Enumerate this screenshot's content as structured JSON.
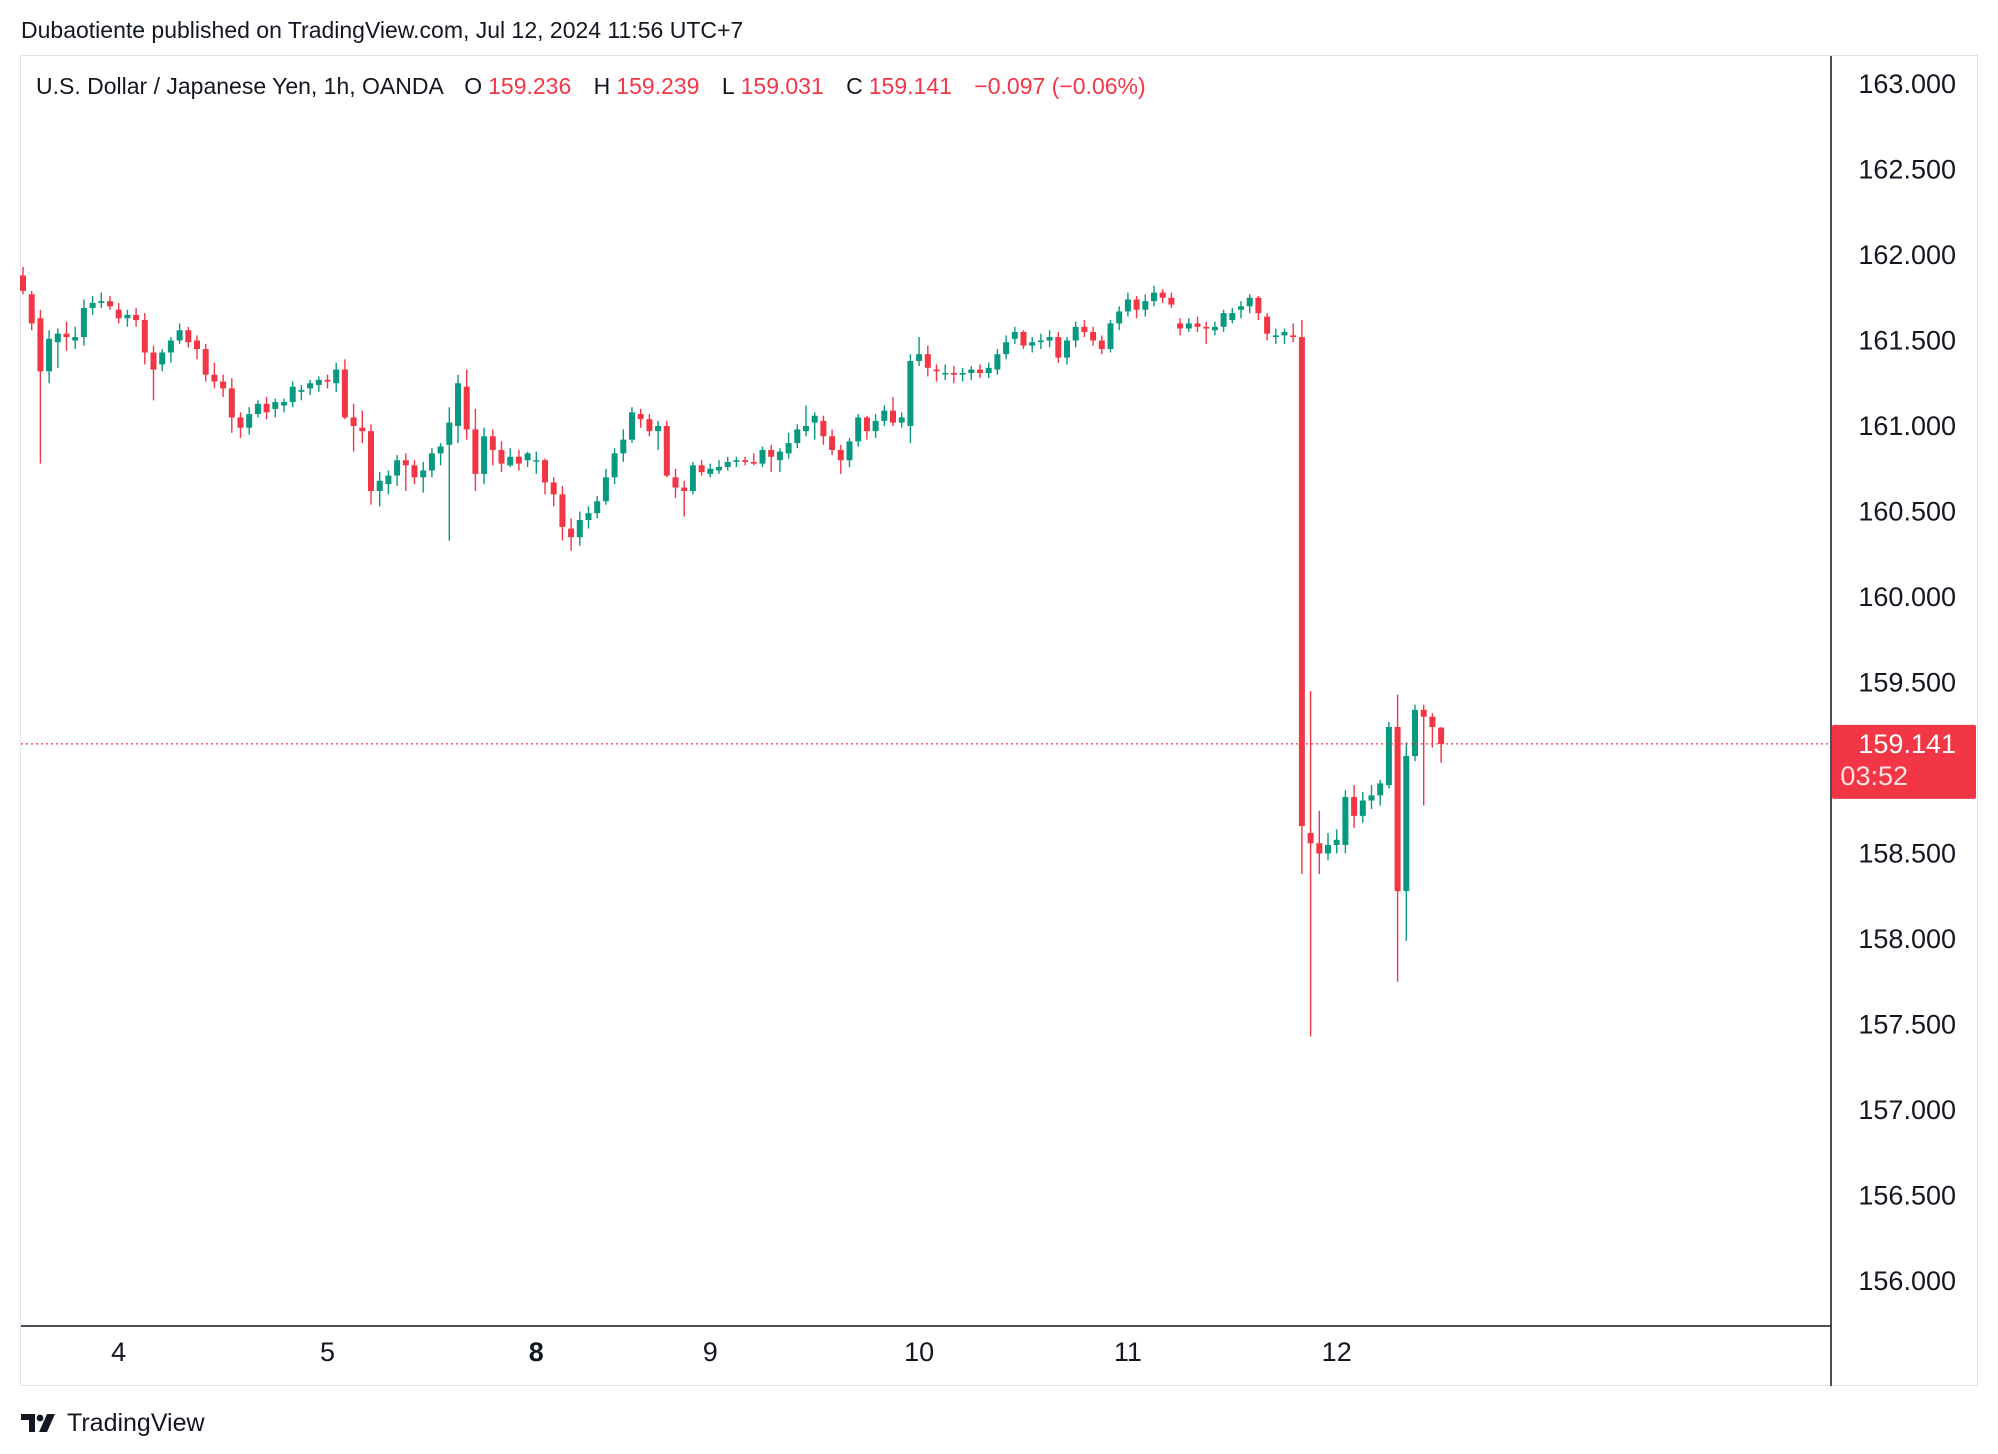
{
  "publisher_line": "Dubaotiente published on TradingView.com, Jul 12, 2024 11:56 UTC+7",
  "legend": {
    "symbol": "U.S. Dollar / Japanese Yen, 1h, OANDA",
    "open_label": "O",
    "open": "159.236",
    "high_label": "H",
    "high": "159.239",
    "low_label": "L",
    "low": "159.031",
    "close_label": "C",
    "close": "159.141",
    "change": "−0.097 (−0.06%)"
  },
  "price_tag": {
    "price": "159.141",
    "countdown": "03:52"
  },
  "brand": "TradingView",
  "colors": {
    "up": "#089981",
    "down": "#f23645",
    "text": "#131722",
    "border": "#e0e3eb",
    "axis": "#131722"
  },
  "chart_data": {
    "type": "candlestick",
    "symbol": "USDJPY",
    "interval": "1h",
    "ylim": [
      155.8,
      163.3
    ],
    "y_ticks": [
      "163.000",
      "162.500",
      "162.000",
      "161.500",
      "161.000",
      "160.500",
      "160.000",
      "159.500",
      "159.000",
      "158.500",
      "158.000",
      "157.500",
      "157.000",
      "156.500",
      "156.000"
    ],
    "x_ticks": [
      {
        "label": "4",
        "bar": 11,
        "bold": false
      },
      {
        "label": "5",
        "bar": 35,
        "bold": false
      },
      {
        "label": "8",
        "bar": 59,
        "bold": true
      },
      {
        "label": "9",
        "bar": 79,
        "bold": false
      },
      {
        "label": "10",
        "bar": 103,
        "bold": false
      },
      {
        "label": "11",
        "bar": 127,
        "bold": false
      },
      {
        "label": "12",
        "bar": 151,
        "bold": false
      }
    ],
    "last_price": 159.141,
    "candles": [
      [
        161.88,
        161.93,
        161.77,
        161.79
      ],
      [
        161.77,
        161.79,
        161.56,
        161.6
      ],
      [
        161.63,
        161.68,
        160.78,
        161.32
      ],
      [
        161.32,
        161.56,
        161.25,
        161.51
      ],
      [
        161.49,
        161.57,
        161.34,
        161.54
      ],
      [
        161.54,
        161.61,
        161.44,
        161.52
      ],
      [
        161.5,
        161.58,
        161.45,
        161.52
      ],
      [
        161.52,
        161.74,
        161.47,
        161.69
      ],
      [
        161.69,
        161.76,
        161.65,
        161.72
      ],
      [
        161.72,
        161.78,
        161.69,
        161.73
      ],
      [
        161.73,
        161.76,
        161.68,
        161.7
      ],
      [
        161.68,
        161.72,
        161.6,
        161.63
      ],
      [
        161.63,
        161.68,
        161.58,
        161.65
      ],
      [
        161.65,
        161.69,
        161.58,
        161.62
      ],
      [
        161.62,
        161.66,
        161.36,
        161.43
      ],
      [
        161.43,
        161.47,
        161.15,
        161.33
      ],
      [
        161.36,
        161.45,
        161.32,
        161.43
      ],
      [
        161.43,
        161.52,
        161.37,
        161.5
      ],
      [
        161.5,
        161.6,
        161.48,
        161.56
      ],
      [
        161.56,
        161.58,
        161.46,
        161.49
      ],
      [
        161.5,
        161.53,
        161.39,
        161.45
      ],
      [
        161.45,
        161.48,
        161.26,
        161.3
      ],
      [
        161.3,
        161.37,
        161.22,
        161.26
      ],
      [
        161.26,
        161.3,
        161.17,
        161.22
      ],
      [
        161.22,
        161.28,
        160.96,
        161.05
      ],
      [
        161.05,
        161.08,
        160.93,
        160.99
      ],
      [
        160.99,
        161.11,
        160.95,
        161.07
      ],
      [
        161.07,
        161.15,
        161.05,
        161.13
      ],
      [
        161.13,
        161.17,
        161.04,
        161.08
      ],
      [
        161.1,
        161.16,
        161.05,
        161.14
      ],
      [
        161.12,
        161.16,
        161.08,
        161.14
      ],
      [
        161.14,
        161.26,
        161.11,
        161.23
      ],
      [
        161.2,
        161.24,
        161.15,
        161.21
      ],
      [
        161.22,
        161.27,
        161.18,
        161.25
      ],
      [
        161.24,
        161.29,
        161.2,
        161.27
      ],
      [
        161.27,
        161.3,
        161.22,
        161.26
      ],
      [
        161.25,
        161.37,
        161.2,
        161.33
      ],
      [
        161.33,
        161.39,
        161.04,
        161.05
      ],
      [
        161.05,
        161.13,
        160.85,
        161.0
      ],
      [
        160.99,
        161.09,
        160.9,
        160.97
      ],
      [
        160.97,
        161.01,
        160.54,
        160.62
      ],
      [
        160.62,
        160.73,
        160.53,
        160.68
      ],
      [
        160.66,
        160.74,
        160.6,
        160.71
      ],
      [
        160.71,
        160.83,
        160.65,
        160.8
      ],
      [
        160.8,
        160.84,
        160.62,
        160.77
      ],
      [
        160.77,
        160.8,
        160.66,
        160.7
      ],
      [
        160.7,
        160.79,
        160.61,
        160.74
      ],
      [
        160.74,
        160.87,
        160.7,
        160.84
      ],
      [
        160.84,
        160.9,
        160.77,
        160.88
      ],
      [
        160.89,
        161.11,
        160.33,
        161.02
      ],
      [
        161.0,
        161.3,
        160.9,
        161.25
      ],
      [
        161.23,
        161.33,
        160.92,
        160.98
      ],
      [
        160.98,
        161.1,
        160.62,
        160.72
      ],
      [
        160.72,
        160.99,
        160.66,
        160.94
      ],
      [
        160.94,
        160.98,
        160.77,
        160.86
      ],
      [
        160.86,
        160.91,
        160.73,
        160.78
      ],
      [
        160.77,
        160.87,
        160.76,
        160.82
      ],
      [
        160.82,
        160.86,
        160.74,
        160.78
      ],
      [
        160.8,
        160.85,
        160.76,
        160.84
      ],
      [
        160.8,
        160.85,
        160.72,
        160.8
      ],
      [
        160.8,
        160.81,
        160.6,
        160.67
      ],
      [
        160.67,
        160.7,
        160.53,
        160.6
      ],
      [
        160.6,
        160.65,
        160.33,
        160.41
      ],
      [
        160.4,
        160.46,
        160.27,
        160.35
      ],
      [
        160.35,
        160.5,
        160.3,
        160.45
      ],
      [
        160.45,
        160.53,
        160.4,
        160.49
      ],
      [
        160.49,
        160.59,
        160.46,
        160.56
      ],
      [
        160.56,
        160.75,
        160.54,
        160.7
      ],
      [
        160.7,
        160.87,
        160.66,
        160.84
      ],
      [
        160.84,
        160.98,
        160.79,
        160.92
      ],
      [
        160.92,
        161.11,
        160.9,
        161.08
      ],
      [
        161.07,
        161.1,
        160.99,
        161.04
      ],
      [
        161.04,
        161.07,
        160.94,
        160.97
      ],
      [
        160.97,
        161.03,
        160.86,
        161.0
      ],
      [
        161.0,
        161.03,
        160.7,
        160.71
      ],
      [
        160.7,
        160.75,
        160.58,
        160.64
      ],
      [
        160.64,
        160.68,
        160.47,
        160.62
      ],
      [
        160.62,
        160.79,
        160.6,
        160.77
      ],
      [
        160.77,
        160.8,
        160.71,
        160.73
      ],
      [
        160.72,
        160.78,
        160.7,
        160.75
      ],
      [
        160.74,
        160.8,
        160.72,
        160.76
      ],
      [
        160.76,
        160.82,
        160.74,
        160.79
      ],
      [
        160.79,
        160.82,
        160.76,
        160.8
      ],
      [
        160.8,
        160.82,
        160.77,
        160.79
      ],
      [
        160.79,
        160.84,
        160.77,
        160.78
      ],
      [
        160.78,
        160.88,
        160.76,
        160.86
      ],
      [
        160.86,
        160.89,
        160.73,
        160.82
      ],
      [
        160.8,
        160.87,
        160.73,
        160.85
      ],
      [
        160.84,
        160.96,
        160.81,
        160.9
      ],
      [
        160.9,
        161.01,
        160.87,
        160.98
      ],
      [
        160.97,
        161.12,
        160.94,
        161.0
      ],
      [
        161.02,
        161.08,
        160.92,
        161.06
      ],
      [
        161.03,
        161.06,
        160.89,
        160.94
      ],
      [
        160.94,
        160.98,
        160.83,
        160.86
      ],
      [
        160.86,
        160.89,
        160.72,
        160.8
      ],
      [
        160.8,
        160.93,
        160.76,
        160.91
      ],
      [
        160.91,
        161.07,
        160.88,
        161.05
      ],
      [
        161.05,
        161.06,
        160.92,
        160.97
      ],
      [
        160.97,
        161.07,
        160.93,
        161.03
      ],
      [
        161.03,
        161.12,
        161.0,
        161.09
      ],
      [
        161.09,
        161.17,
        161.0,
        161.02
      ],
      [
        161.02,
        161.08,
        160.99,
        161.05
      ],
      [
        161.0,
        161.42,
        160.9,
        161.38
      ],
      [
        161.38,
        161.52,
        161.35,
        161.42
      ],
      [
        161.42,
        161.47,
        161.29,
        161.34
      ],
      [
        161.33,
        161.36,
        161.26,
        161.32
      ],
      [
        161.31,
        161.36,
        161.27,
        161.31
      ],
      [
        161.31,
        161.35,
        161.25,
        161.3
      ],
      [
        161.3,
        161.34,
        161.26,
        161.31
      ],
      [
        161.31,
        161.35,
        161.27,
        161.33
      ],
      [
        161.33,
        161.36,
        161.28,
        161.31
      ],
      [
        161.31,
        161.37,
        161.28,
        161.34
      ],
      [
        161.33,
        161.45,
        161.3,
        161.42
      ],
      [
        161.42,
        161.53,
        161.39,
        161.49
      ],
      [
        161.51,
        161.58,
        161.48,
        161.55
      ],
      [
        161.55,
        161.56,
        161.45,
        161.47
      ],
      [
        161.47,
        161.52,
        161.43,
        161.49
      ],
      [
        161.49,
        161.54,
        161.45,
        161.5
      ],
      [
        161.5,
        161.56,
        161.46,
        161.52
      ],
      [
        161.52,
        161.55,
        161.37,
        161.4
      ],
      [
        161.4,
        161.52,
        161.36,
        161.5
      ],
      [
        161.5,
        161.61,
        161.46,
        161.58
      ],
      [
        161.58,
        161.62,
        161.52,
        161.55
      ],
      [
        161.55,
        161.58,
        161.47,
        161.5
      ],
      [
        161.5,
        161.53,
        161.42,
        161.45
      ],
      [
        161.45,
        161.62,
        161.43,
        161.6
      ],
      [
        161.6,
        161.7,
        161.56,
        161.67
      ],
      [
        161.67,
        161.78,
        161.64,
        161.74
      ],
      [
        161.74,
        161.76,
        161.63,
        161.68
      ],
      [
        161.68,
        161.77,
        161.64,
        161.73
      ],
      [
        161.73,
        161.82,
        161.7,
        161.78
      ],
      [
        161.78,
        161.8,
        161.72,
        161.75
      ],
      [
        161.75,
        161.78,
        161.69,
        161.71
      ],
      [
        161.6,
        161.63,
        161.53,
        161.57
      ],
      [
        161.57,
        161.63,
        161.55,
        161.6
      ],
      [
        161.6,
        161.64,
        161.55,
        161.58
      ],
      [
        161.58,
        161.61,
        161.48,
        161.57
      ],
      [
        161.56,
        161.61,
        161.53,
        161.58
      ],
      [
        161.58,
        161.68,
        161.55,
        161.66
      ],
      [
        161.62,
        161.69,
        161.6,
        161.66
      ],
      [
        161.68,
        161.73,
        161.63,
        161.7
      ],
      [
        161.7,
        161.77,
        161.66,
        161.75
      ],
      [
        161.75,
        161.76,
        161.62,
        161.66
      ],
      [
        161.64,
        161.66,
        161.5,
        161.54
      ],
      [
        161.52,
        161.57,
        161.48,
        161.53
      ],
      [
        161.53,
        161.57,
        161.48,
        161.55
      ],
      [
        161.53,
        161.6,
        161.49,
        161.52
      ],
      [
        161.52,
        161.62,
        158.38,
        158.66
      ],
      [
        158.62,
        159.45,
        157.43,
        158.56
      ],
      [
        158.56,
        158.75,
        158.38,
        158.5
      ],
      [
        158.5,
        158.62,
        158.46,
        158.55
      ],
      [
        158.55,
        158.64,
        158.5,
        158.58
      ],
      [
        158.55,
        158.87,
        158.5,
        158.83
      ],
      [
        158.83,
        158.9,
        158.65,
        158.72
      ],
      [
        158.72,
        158.86,
        158.68,
        158.81
      ],
      [
        158.81,
        158.9,
        158.76,
        158.84
      ],
      [
        158.84,
        158.93,
        158.78,
        158.91
      ],
      [
        158.9,
        159.27,
        158.88,
        159.24
      ],
      [
        159.24,
        159.43,
        157.75,
        158.28
      ],
      [
        158.28,
        159.15,
        157.99,
        159.07
      ],
      [
        159.07,
        159.37,
        159.04,
        159.34
      ],
      [
        159.34,
        159.37,
        158.78,
        159.3
      ],
      [
        159.3,
        159.32,
        159.12,
        159.24
      ],
      [
        159.236,
        159.239,
        159.031,
        159.141
      ]
    ]
  }
}
